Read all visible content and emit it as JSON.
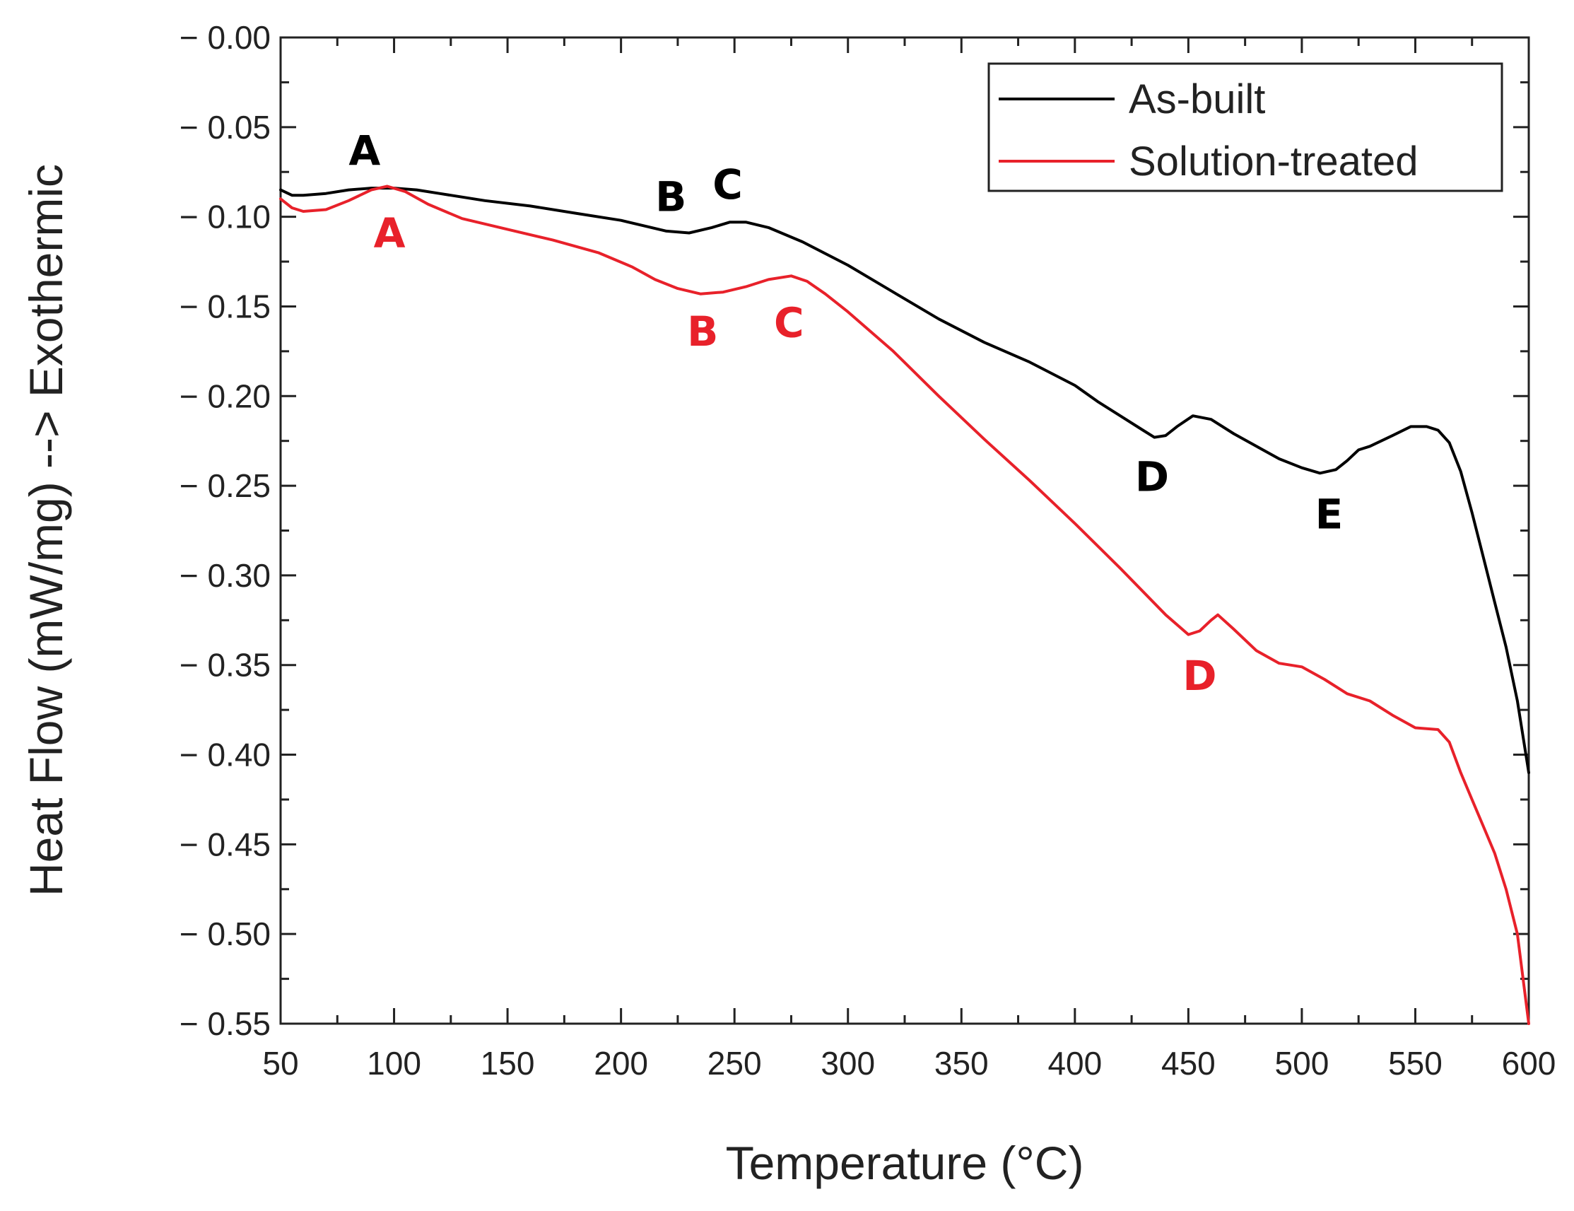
{
  "chart_data": {
    "type": "line",
    "title": "",
    "xlabel": "Temperature (°C)",
    "ylabel": "Heat Flow (mW/mg) --> Exothermic",
    "xlim": [
      50,
      600
    ],
    "ylim": [
      -0.55,
      0.0
    ],
    "x_ticks": [
      50,
      100,
      150,
      200,
      250,
      300,
      350,
      400,
      450,
      500,
      550,
      600
    ],
    "x_tick_labels": [
      "50",
      "100",
      "150",
      "200",
      "250",
      "300",
      "350",
      "400",
      "450",
      "500",
      "550",
      "600"
    ],
    "y_ticks": [
      0.0,
      -0.05,
      -0.1,
      -0.15,
      -0.2,
      -0.25,
      -0.3,
      -0.35,
      -0.4,
      -0.45,
      -0.5,
      -0.55
    ],
    "y_tick_labels": [
      "− 0.00",
      "− 0.05",
      "− 0.10",
      "− 0.15",
      "− 0.20",
      "− 0.25",
      "− 0.30",
      "− 0.35",
      "− 0.40",
      "− 0.45",
      "− 0.50",
      "− 0.55"
    ],
    "grid": false,
    "legend_position": "top-right",
    "series": [
      {
        "name": "As-built",
        "color": "#000000",
        "x": [
          50,
          55,
          60,
          70,
          80,
          90,
          100,
          110,
          120,
          140,
          160,
          180,
          200,
          210,
          220,
          230,
          240,
          248,
          255,
          265,
          280,
          300,
          320,
          340,
          360,
          380,
          400,
          410,
          420,
          430,
          435,
          440,
          445,
          452,
          460,
          470,
          480,
          490,
          500,
          508,
          515,
          520,
          525,
          530,
          540,
          548,
          555,
          560,
          565,
          570,
          575,
          580,
          585,
          590,
          595,
          600
        ],
        "y": [
          -0.085,
          -0.088,
          -0.088,
          -0.087,
          -0.085,
          -0.084,
          -0.084,
          -0.085,
          -0.087,
          -0.091,
          -0.094,
          -0.098,
          -0.102,
          -0.105,
          -0.108,
          -0.109,
          -0.106,
          -0.103,
          -0.103,
          -0.106,
          -0.114,
          -0.127,
          -0.142,
          -0.157,
          -0.17,
          -0.181,
          -0.194,
          -0.203,
          -0.211,
          -0.219,
          -0.223,
          -0.222,
          -0.217,
          -0.211,
          -0.213,
          -0.221,
          -0.228,
          -0.235,
          -0.24,
          -0.243,
          -0.241,
          -0.236,
          -0.23,
          -0.228,
          -0.222,
          -0.217,
          -0.217,
          -0.219,
          -0.226,
          -0.242,
          -0.265,
          -0.29,
          -0.315,
          -0.34,
          -0.37,
          -0.41
        ]
      },
      {
        "name": "Solution-treated",
        "color": "#e8212a",
        "x": [
          50,
          55,
          60,
          70,
          80,
          90,
          97,
          105,
          115,
          130,
          150,
          170,
          190,
          205,
          215,
          225,
          235,
          245,
          255,
          265,
          275,
          282,
          290,
          300,
          320,
          340,
          360,
          380,
          400,
          420,
          440,
          450,
          455,
          460,
          463,
          470,
          480,
          490,
          500,
          510,
          520,
          530,
          540,
          550,
          560,
          565,
          570,
          575,
          580,
          585,
          590,
          595,
          600
        ],
        "y": [
          -0.09,
          -0.095,
          -0.097,
          -0.096,
          -0.091,
          -0.085,
          -0.083,
          -0.086,
          -0.093,
          -0.101,
          -0.107,
          -0.113,
          -0.12,
          -0.128,
          -0.135,
          -0.14,
          -0.143,
          -0.142,
          -0.139,
          -0.135,
          -0.133,
          -0.136,
          -0.143,
          -0.153,
          -0.175,
          -0.2,
          -0.224,
          -0.247,
          -0.271,
          -0.296,
          -0.322,
          -0.333,
          -0.331,
          -0.325,
          -0.322,
          -0.33,
          -0.342,
          -0.349,
          -0.351,
          -0.358,
          -0.366,
          -0.37,
          -0.378,
          -0.385,
          -0.386,
          -0.393,
          -0.41,
          -0.425,
          -0.44,
          -0.455,
          -0.475,
          -0.5,
          -0.55
        ]
      }
    ],
    "annotations": [
      {
        "text": "A",
        "series": "As-built",
        "x": 87,
        "y": -0.063,
        "color": "#000000"
      },
      {
        "text": "B",
        "series": "As-built",
        "x": 222,
        "y": -0.089,
        "color": "#000000"
      },
      {
        "text": "C",
        "series": "As-built",
        "x": 247,
        "y": -0.082,
        "color": "#000000"
      },
      {
        "text": "D",
        "series": "As-built",
        "x": 434,
        "y": -0.245,
        "color": "#000000"
      },
      {
        "text": "E",
        "series": "As-built",
        "x": 512,
        "y": -0.266,
        "color": "#000000"
      },
      {
        "text": "A",
        "series": "Solution-treated",
        "x": 98,
        "y": -0.109,
        "color": "#e8212a"
      },
      {
        "text": "B",
        "series": "Solution-treated",
        "x": 236,
        "y": -0.164,
        "color": "#e8212a"
      },
      {
        "text": "C",
        "series": "Solution-treated",
        "x": 274,
        "y": -0.159,
        "color": "#e8212a"
      },
      {
        "text": "D",
        "series": "Solution-treated",
        "x": 455,
        "y": -0.356,
        "color": "#e8212a"
      }
    ]
  }
}
